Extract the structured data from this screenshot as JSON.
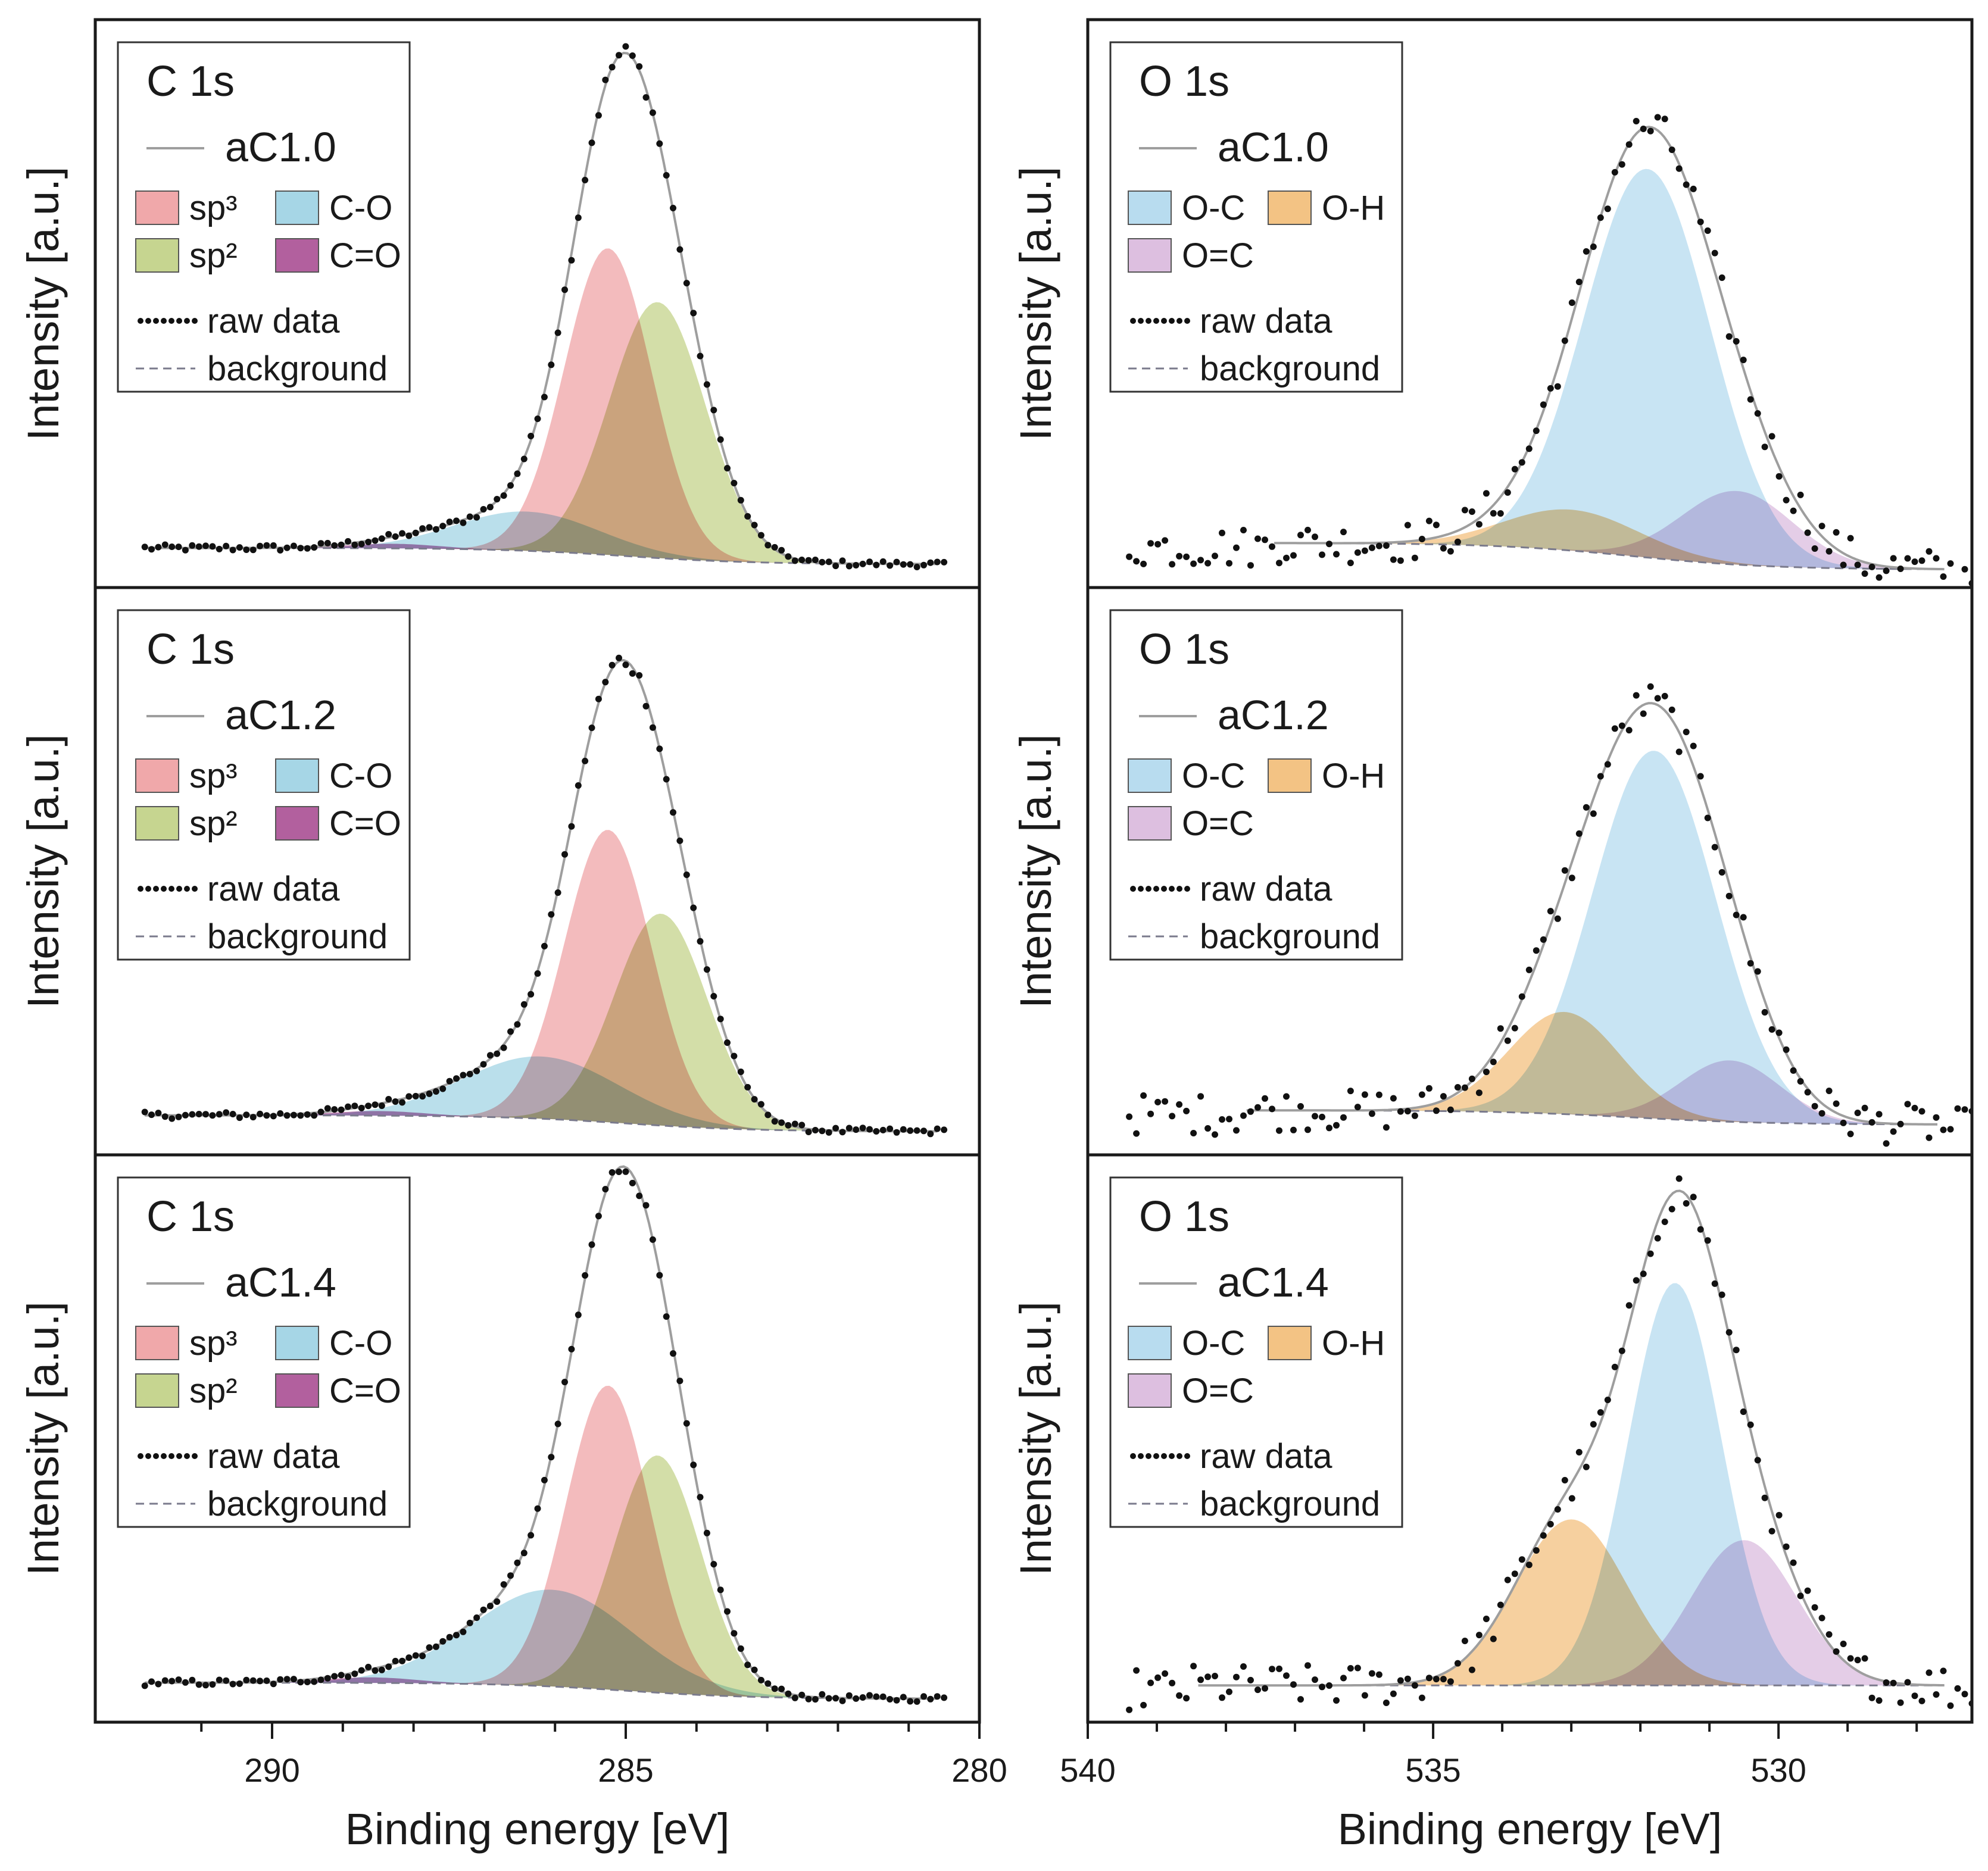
{
  "chart_data": {
    "type": "area",
    "description_axes": {
      "ylabel": "Intensity [a.u.]",
      "xlabel": "Binding energy [eV]"
    },
    "columns": [
      {
        "id": "c1s",
        "xlabel": "Binding energy [eV]",
        "xlim": [
          292.5,
          280
        ],
        "xticks_major": [
          290,
          285,
          280
        ],
        "xticks_minor": [
          291,
          289,
          288,
          287,
          286,
          284,
          283,
          282,
          281
        ]
      },
      {
        "id": "o1s",
        "xlabel": "Binding energy [eV]",
        "xlim": [
          540,
          527.2
        ],
        "xticks_major": [
          540,
          535,
          530
        ],
        "xticks_minor": [
          539,
          538,
          537,
          536,
          534,
          533,
          532,
          531,
          529,
          528
        ]
      }
    ],
    "panels": [
      {
        "id": "c1s-ac10",
        "column": 0,
        "row": 0,
        "title": "C 1s",
        "sample": "aC1.0",
        "ylabel": "Intensity [a.u.]",
        "ylim": [
          -0.06,
          1.12
        ],
        "x_range": [
          291.8,
          280.6
        ],
        "background": {
          "left": 0.0,
          "right": -0.035,
          "center": 285.0,
          "width": 0.9
        },
        "legend": {
          "components": [
            [
              "sp³",
              "C-O"
            ],
            [
              "sp²",
              "C=O"
            ]
          ],
          "raw": "raw data",
          "bg": "background"
        },
        "components": [
          {
            "name": "sp³",
            "center": 285.25,
            "height": 0.665,
            "fwhm": 1.45,
            "color": "#f0a8aa"
          },
          {
            "name": "sp²",
            "center": 284.55,
            "height": 0.555,
            "fwhm": 1.6,
            "color": "#c6d590"
          },
          {
            "name": "C-O",
            "center": 286.4,
            "height": 0.085,
            "fwhm": 2.4,
            "color": "#a6d6e6"
          },
          {
            "name": "C=O",
            "center": 288.3,
            "height": 0.01,
            "fwhm": 1.5,
            "color": "#b2609e"
          }
        ]
      },
      {
        "id": "c1s-ac12",
        "column": 0,
        "row": 1,
        "title": "C 1s",
        "sample": "aC1.2",
        "ylabel": "Intensity [a.u.]",
        "ylim": [
          -0.06,
          1.12
        ],
        "x_range": [
          291.8,
          280.6
        ],
        "background": {
          "left": 0.0,
          "right": -0.035,
          "center": 285.0,
          "width": 0.9
        },
        "legend": {
          "components": [
            [
              "sp³",
              "C-O"
            ],
            [
              "sp²",
              "C=O"
            ]
          ],
          "raw": "raw data",
          "bg": "background"
        },
        "components": [
          {
            "name": "sp³",
            "center": 285.25,
            "height": 0.635,
            "fwhm": 1.45,
            "color": "#f0a8aa"
          },
          {
            "name": "sp²",
            "center": 284.5,
            "height": 0.46,
            "fwhm": 1.55,
            "color": "#c6d590"
          },
          {
            "name": "C-O",
            "center": 286.2,
            "height": 0.135,
            "fwhm": 2.6,
            "color": "#a6d6e6"
          },
          {
            "name": "C=O",
            "center": 288.5,
            "height": 0.01,
            "fwhm": 1.5,
            "color": "#b2609e"
          }
        ]
      },
      {
        "id": "c1s-ac14",
        "column": 0,
        "row": 2,
        "title": "C 1s",
        "sample": "aC1.4",
        "ylabel": "Intensity [a.u.]",
        "ylim": [
          -0.06,
          1.12
        ],
        "x_range": [
          291.8,
          280.6
        ],
        "background": {
          "left": 0.0,
          "right": -0.035,
          "center": 285.0,
          "width": 0.9
        },
        "legend": {
          "components": [
            [
              "sp³",
              "C-O"
            ],
            [
              "sp²",
              "C=O"
            ]
          ],
          "raw": "raw data",
          "bg": "background"
        },
        "components": [
          {
            "name": "sp³",
            "center": 285.25,
            "height": 0.66,
            "fwhm": 1.4,
            "color": "#f0a8aa"
          },
          {
            "name": "sp²",
            "center": 284.55,
            "height": 0.515,
            "fwhm": 1.45,
            "color": "#c6d590"
          },
          {
            "name": "C-O",
            "center": 286.05,
            "height": 0.21,
            "fwhm": 2.7,
            "color": "#a6d6e6"
          },
          {
            "name": "C=O",
            "center": 288.6,
            "height": 0.012,
            "fwhm": 1.5,
            "color": "#b2609e"
          }
        ]
      },
      {
        "id": "o1s-ac10",
        "column": 1,
        "row": 0,
        "title": "O 1s",
        "sample": "aC1.0",
        "ylabel": "Intensity [a.u.]",
        "ylim": [
          -0.08,
          1.25
        ],
        "x_range": [
          537.3,
          527.6
        ],
        "background": {
          "left": 0.0,
          "right": -0.065,
          "center": 532.1,
          "width": 1.0
        },
        "legend": {
          "components": [
            [
              "O-C",
              "O-H"
            ],
            [
              "O=C",
              ""
            ]
          ],
          "raw": "raw data",
          "bg": "background"
        },
        "components": [
          {
            "name": "O-C",
            "center": 531.9,
            "height": 0.95,
            "fwhm": 2.15,
            "color": "#b8dcef"
          },
          {
            "name": "O-H",
            "center": 533.0,
            "height": 0.1,
            "fwhm": 2.3,
            "color": "#f3c384"
          },
          {
            "name": "O=C",
            "center": 530.6,
            "height": 0.18,
            "fwhm": 1.9,
            "color": "#ddbfe0"
          }
        ]
      },
      {
        "id": "o1s-ac12",
        "column": 1,
        "row": 1,
        "title": "O 1s",
        "sample": "aC1.2",
        "ylabel": "Intensity [a.u.]",
        "ylim": [
          -0.08,
          1.25
        ],
        "x_range": [
          537.7,
          527.7
        ],
        "background": {
          "left": 0.0,
          "right": -0.035,
          "center": 532.1,
          "width": 1.0
        },
        "legend": {
          "components": [
            [
              "O-C",
              "O-H"
            ],
            [
              "O=C",
              ""
            ]
          ],
          "raw": "raw data",
          "bg": "background"
        },
        "components": [
          {
            "name": "O-C",
            "center": 531.8,
            "height": 0.9,
            "fwhm": 2.1,
            "color": "#b8dcef"
          },
          {
            "name": "O-H",
            "center": 533.1,
            "height": 0.25,
            "fwhm": 1.9,
            "color": "#f3c384"
          },
          {
            "name": "O=C",
            "center": 530.7,
            "height": 0.15,
            "fwhm": 1.7,
            "color": "#ddbfe0"
          }
        ]
      },
      {
        "id": "o1s-ac14",
        "column": 1,
        "row": 2,
        "title": "O 1s",
        "sample": "aC1.4",
        "ylabel": "Intensity [a.u.]",
        "ylim": [
          -0.06,
          1.25
        ],
        "x_range": [
          538.4,
          527.6
        ],
        "background": {
          "left": 0.0,
          "right": 0.0,
          "center": 532.1,
          "width": 1.0
        },
        "legend": {
          "components": [
            [
              "O-C",
              "O-H"
            ],
            [
              "O=C",
              ""
            ]
          ],
          "raw": "raw data",
          "bg": "background"
        },
        "components": [
          {
            "name": "O-C",
            "center": 531.5,
            "height": 0.97,
            "fwhm": 1.6,
            "color": "#b8dcef"
          },
          {
            "name": "O-H",
            "center": 533.0,
            "height": 0.4,
            "fwhm": 1.9,
            "color": "#f3c384"
          },
          {
            "name": "O=C",
            "center": 530.5,
            "height": 0.35,
            "fwhm": 1.8,
            "color": "#ddbfe0"
          }
        ]
      }
    ]
  }
}
